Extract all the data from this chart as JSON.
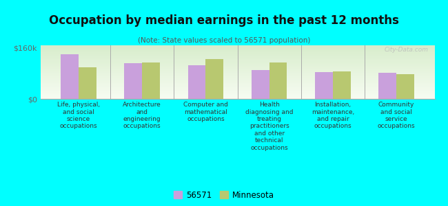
{
  "title": "Occupation by median earnings in the past 12 months",
  "subtitle": "(Note: State values scaled to 56571 population)",
  "background_color": "#00FFFF",
  "plot_bg_top": "#d8edcc",
  "plot_bg_bottom": "#f5f8ee",
  "categories": [
    "Life, physical,\nand social\nscience\noccupations",
    "Architecture\nand\nengineering\noccupations",
    "Computer and\nmathematical\noccupations",
    "Health\ndiagnosing and\ntreating\npractitioners\nand other\ntechnical\noccupations",
    "Installation,\nmaintenance,\nand repair\noccupations",
    "Community\nand social\nservice\noccupations"
  ],
  "values_56571": [
    140000,
    112000,
    105000,
    90000,
    85000,
    82000
  ],
  "values_minnesota": [
    100000,
    115000,
    125000,
    115000,
    86000,
    78000
  ],
  "color_56571": "#c9a0dc",
  "color_minnesota": "#b8c870",
  "ylim_max": 160000,
  "ytick_labels": [
    "$0",
    "$160k"
  ],
  "legend_label_56571": "56571",
  "legend_label_minnesota": "Minnesota",
  "watermark": "City-Data.com"
}
